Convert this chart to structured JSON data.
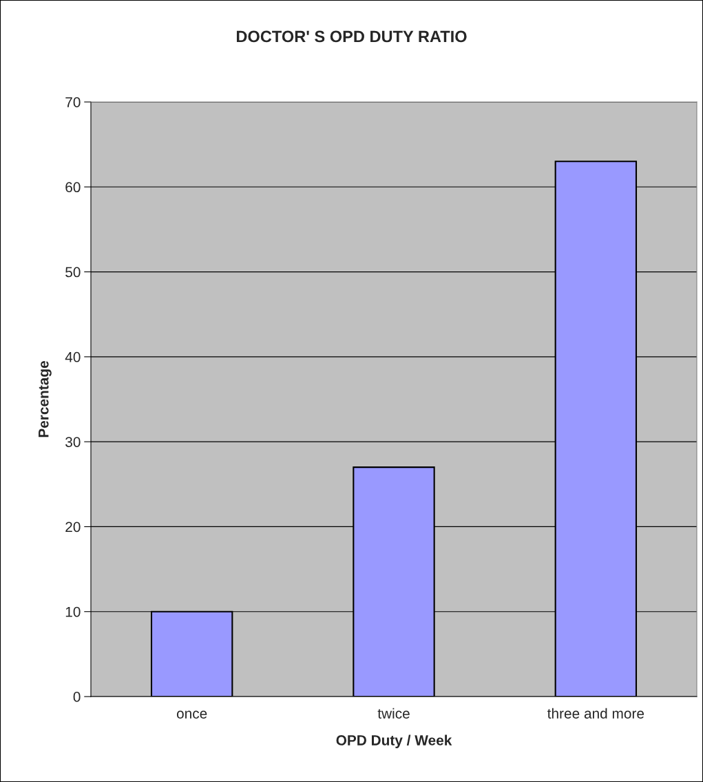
{
  "chart_data": {
    "type": "bar",
    "title": "DOCTOR' S OPD DUTY RATIO",
    "xlabel": "OPD Duty / Week",
    "ylabel": "Percentage",
    "categories": [
      "once",
      "twice",
      "three and more"
    ],
    "values": [
      10,
      27,
      63
    ],
    "color": "#9999ff",
    "ylim": [
      0,
      70
    ],
    "yticks": [
      0,
      10,
      20,
      30,
      40,
      50,
      60,
      70
    ],
    "grid": "y",
    "legend": false
  }
}
